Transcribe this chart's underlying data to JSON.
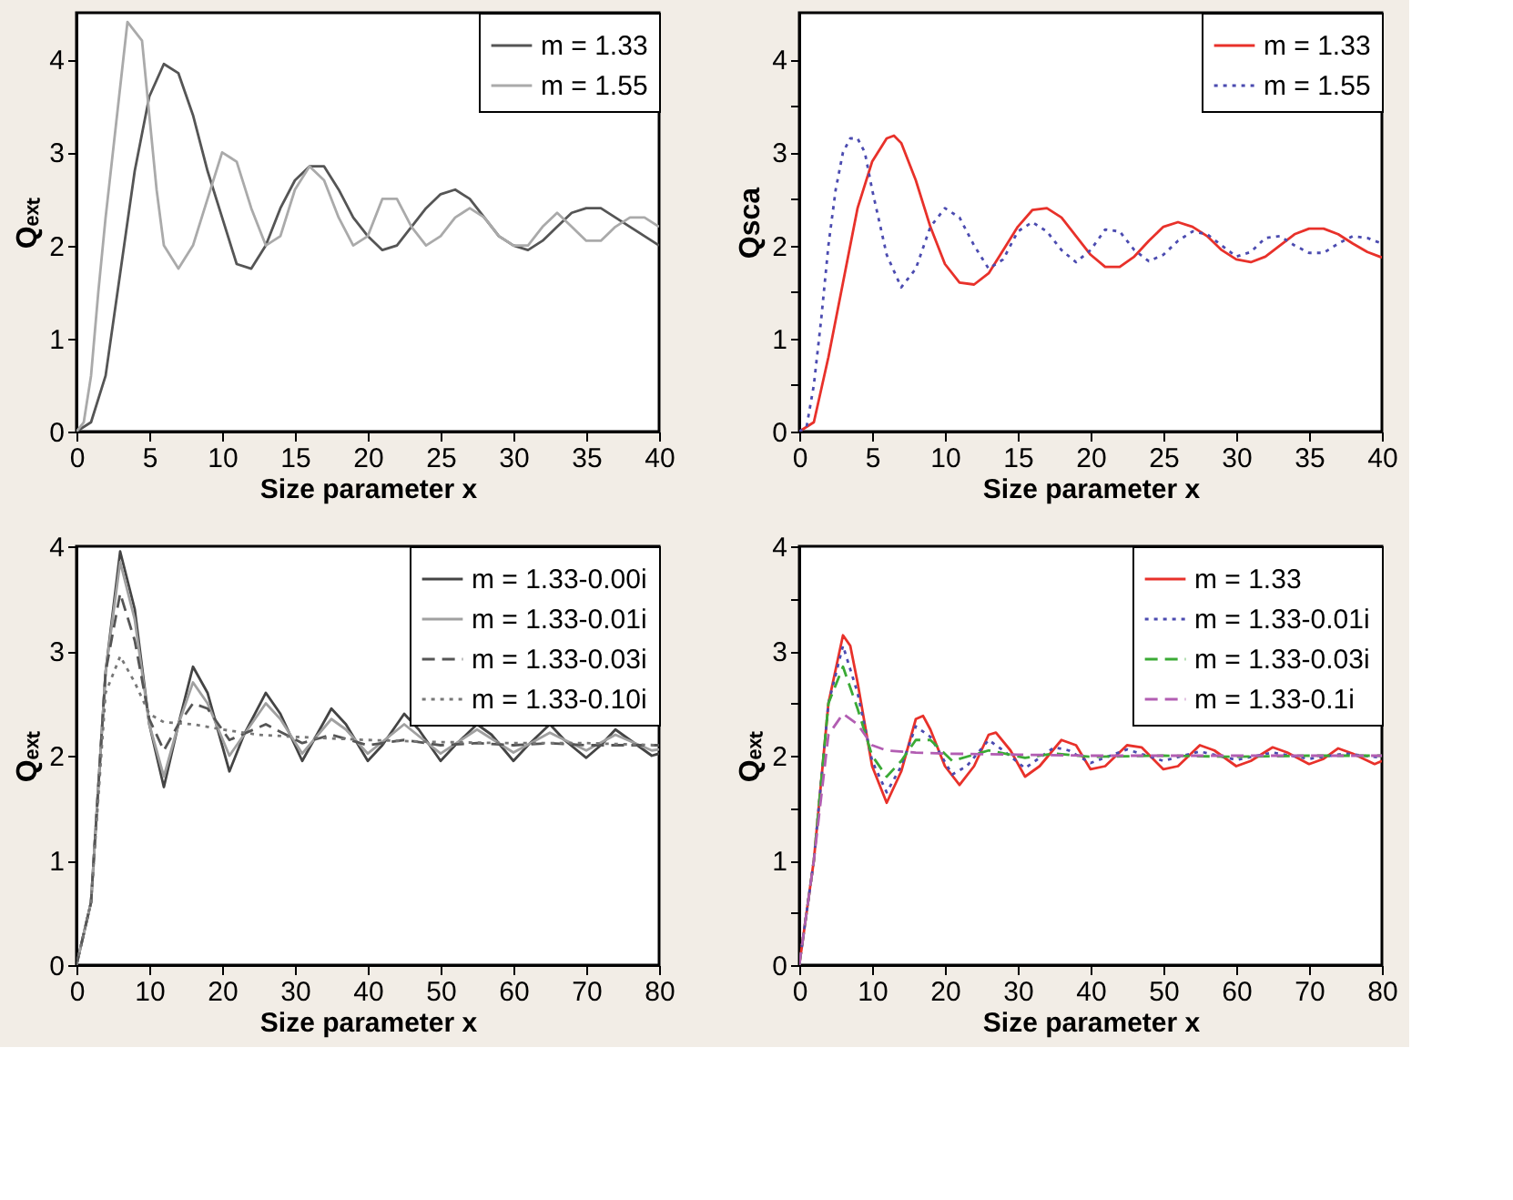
{
  "chart_data": [
    {
      "type": "line",
      "xlabel": "Size parameter x",
      "ylabel": "Qₑₓₜ",
      "xlim": [
        0,
        40
      ],
      "xticks": [
        0,
        5,
        10,
        15,
        20,
        25,
        30,
        35,
        40
      ],
      "ylim": [
        0,
        4.5
      ],
      "yticks": [
        0,
        1,
        2,
        3,
        4
      ],
      "legend": "top right",
      "grid": false,
      "series": [
        {
          "name": "m = 1.33",
          "color": "#555555",
          "line_style": "solid",
          "x": [
            0,
            1,
            2,
            3,
            4,
            5,
            6,
            7,
            8,
            9,
            10,
            11,
            12,
            13,
            14,
            15,
            16,
            17,
            18,
            19,
            20,
            21,
            22,
            23,
            24,
            25,
            26,
            27,
            28,
            29,
            30,
            31,
            32,
            33,
            34,
            35,
            36,
            37,
            38,
            39,
            40
          ],
          "values": [
            0,
            0.1,
            0.6,
            1.7,
            2.8,
            3.6,
            3.95,
            3.85,
            3.4,
            2.8,
            2.3,
            1.8,
            1.75,
            2.0,
            2.4,
            2.7,
            2.85,
            2.85,
            2.6,
            2.3,
            2.1,
            1.95,
            2.0,
            2.2,
            2.4,
            2.55,
            2.6,
            2.5,
            2.3,
            2.1,
            2.0,
            1.95,
            2.05,
            2.2,
            2.35,
            2.4,
            2.4,
            2.3,
            2.2,
            2.1,
            2.0
          ]
        },
        {
          "name": "m = 1.55",
          "color": "#aaaaaa",
          "line_style": "solid",
          "x": [
            0,
            0.5,
            1,
            1.5,
            2,
            2.5,
            3,
            3.5,
            4,
            4.5,
            5,
            5.5,
            6,
            7,
            8,
            9,
            10,
            11,
            12,
            13,
            14,
            15,
            16,
            17,
            18,
            19,
            20,
            21,
            22,
            23,
            24,
            25,
            26,
            27,
            28,
            29,
            30,
            31,
            32,
            33,
            34,
            35,
            36,
            37,
            38,
            39,
            40
          ],
          "values": [
            0,
            0.1,
            0.6,
            1.5,
            2.3,
            3.0,
            3.7,
            4.4,
            4.3,
            4.2,
            3.4,
            2.6,
            2.0,
            1.75,
            2.0,
            2.5,
            3.0,
            2.9,
            2.4,
            2.0,
            2.1,
            2.6,
            2.85,
            2.7,
            2.3,
            2.0,
            2.1,
            2.5,
            2.5,
            2.2,
            2.0,
            2.1,
            2.3,
            2.4,
            2.3,
            2.1,
            2.0,
            2.0,
            2.2,
            2.35,
            2.2,
            2.05,
            2.05,
            2.2,
            2.3,
            2.3,
            2.2
          ]
        }
      ]
    },
    {
      "type": "line",
      "xlabel": "Size parameter x",
      "ylabel": "Qsca",
      "xlim": [
        0,
        40
      ],
      "xticks": [
        0,
        5,
        10,
        15,
        20,
        25,
        30,
        35,
        40
      ],
      "ylim": [
        0,
        4.5
      ],
      "yticks": [
        0,
        {
          "value": 0.5,
          "label": null
        },
        1,
        {
          "value": 1.5,
          "label": null
        },
        2,
        {
          "value": 2.5,
          "label": null
        },
        3,
        {
          "value": 3.5,
          "label": null
        },
        4
      ],
      "legend": "top right",
      "grid": false,
      "series": [
        {
          "name": "m = 1.33",
          "color": "#e8312a",
          "line_style": "solid",
          "x": [
            0,
            1,
            2,
            3,
            4,
            5,
            6,
            6.5,
            7,
            8,
            9,
            10,
            11,
            12,
            13,
            14,
            15,
            16,
            17,
            18,
            19,
            20,
            21,
            22,
            23,
            24,
            25,
            26,
            27,
            28,
            29,
            30,
            31,
            32,
            33,
            34,
            35,
            36,
            37,
            38,
            39,
            40
          ],
          "values": [
            0,
            0.1,
            0.8,
            1.6,
            2.4,
            2.9,
            3.15,
            3.18,
            3.1,
            2.7,
            2.2,
            1.8,
            1.6,
            1.58,
            1.7,
            1.95,
            2.2,
            2.38,
            2.4,
            2.3,
            2.1,
            1.9,
            1.77,
            1.77,
            1.88,
            2.05,
            2.2,
            2.25,
            2.2,
            2.1,
            1.95,
            1.85,
            1.82,
            1.88,
            2.0,
            2.12,
            2.18,
            2.18,
            2.12,
            2.02,
            1.93,
            1.87
          ]
        },
        {
          "name": "m = 1.55",
          "color": "#4b4bb0",
          "line_style": "dotted",
          "x": [
            0,
            0.5,
            1,
            1.5,
            2,
            2.5,
            3,
            3.5,
            4,
            4.5,
            5,
            6,
            7,
            8,
            9,
            10,
            11,
            12,
            13,
            14,
            15,
            16,
            17,
            18,
            19,
            20,
            21,
            22,
            23,
            24,
            25,
            26,
            27,
            28,
            29,
            30,
            31,
            32,
            33,
            34,
            35,
            36,
            37,
            38,
            39,
            40
          ],
          "values": [
            0,
            0.05,
            0.5,
            1.2,
            2.0,
            2.6,
            3.0,
            3.15,
            3.15,
            3.0,
            2.6,
            1.9,
            1.55,
            1.75,
            2.2,
            2.4,
            2.3,
            2.0,
            1.75,
            1.85,
            2.15,
            2.25,
            2.15,
            1.95,
            1.82,
            1.95,
            2.17,
            2.15,
            1.95,
            1.83,
            1.9,
            2.05,
            2.15,
            2.12,
            2.0,
            1.88,
            1.93,
            2.08,
            2.1,
            2.0,
            1.92,
            1.92,
            2.02,
            2.1,
            2.08,
            2.02
          ]
        }
      ]
    },
    {
      "type": "line",
      "xlabel": "Size parameter x",
      "ylabel": "Qₑₓₜ",
      "xlim": [
        0,
        80
      ],
      "xticks": [
        0,
        10,
        20,
        30,
        40,
        50,
        60,
        70,
        80
      ],
      "ylim": [
        0,
        4
      ],
      "yticks": [
        0,
        1,
        2,
        3,
        4
      ],
      "legend": "top right",
      "grid": false,
      "series": [
        {
          "name": "m = 1.33-0.00i",
          "color": "#444444",
          "line_style": "solid",
          "x": [
            0,
            2,
            4,
            6,
            8,
            10,
            12,
            14,
            16,
            18,
            20,
            21,
            23,
            26,
            28,
            31,
            33,
            35,
            37,
            40,
            42,
            45,
            47,
            50,
            52,
            55,
            57,
            60,
            62,
            65,
            67,
            70,
            72,
            74,
            76,
            79,
            80
          ],
          "values": [
            0,
            0.6,
            2.8,
            3.95,
            3.4,
            2.3,
            1.7,
            2.3,
            2.85,
            2.6,
            2.1,
            1.85,
            2.2,
            2.6,
            2.4,
            1.95,
            2.2,
            2.45,
            2.3,
            1.95,
            2.1,
            2.4,
            2.25,
            1.95,
            2.1,
            2.3,
            2.2,
            1.95,
            2.1,
            2.3,
            2.15,
            1.98,
            2.1,
            2.25,
            2.15,
            2.0,
            2.02
          ]
        },
        {
          "name": "m = 1.33-0.01i",
          "color": "#a0a0a0",
          "line_style": "solid",
          "x": [
            0,
            2,
            4,
            6,
            8,
            10,
            12,
            14,
            16,
            18,
            21,
            23,
            26,
            28,
            31,
            35,
            37,
            40,
            45,
            50,
            55,
            60,
            65,
            70,
            74,
            79,
            80
          ],
          "values": [
            0,
            0.6,
            2.8,
            3.85,
            3.3,
            2.3,
            1.8,
            2.3,
            2.7,
            2.5,
            2.0,
            2.2,
            2.5,
            2.35,
            2.02,
            2.35,
            2.25,
            2.02,
            2.3,
            2.02,
            2.25,
            2.03,
            2.22,
            2.05,
            2.2,
            2.05,
            2.06
          ]
        },
        {
          "name": "m = 1.33-0.03i",
          "color": "#555555",
          "line_style": "dashed",
          "x": [
            0,
            2,
            4,
            6,
            8,
            10,
            12,
            14,
            16,
            18,
            21,
            26,
            31,
            35,
            40,
            45,
            50,
            55,
            60,
            65,
            70,
            80
          ],
          "values": [
            0,
            0.6,
            2.8,
            3.55,
            3.1,
            2.35,
            2.05,
            2.3,
            2.5,
            2.45,
            2.15,
            2.3,
            2.12,
            2.2,
            2.1,
            2.15,
            2.1,
            2.12,
            2.1,
            2.12,
            2.1,
            2.1
          ]
        },
        {
          "name": "m = 1.33-0.10i",
          "color": "#777777",
          "line_style": "dotted",
          "x": [
            0,
            2,
            4,
            6,
            8,
            10,
            12,
            16,
            20,
            25,
            30,
            40,
            50,
            60,
            70,
            80
          ],
          "values": [
            0,
            0.6,
            2.6,
            2.95,
            2.7,
            2.4,
            2.32,
            2.3,
            2.25,
            2.2,
            2.18,
            2.15,
            2.13,
            2.12,
            2.12,
            2.1
          ]
        }
      ]
    },
    {
      "type": "line",
      "xlabel": "Size parameter x",
      "ylabel": "Qₑₓₜ",
      "xlim": [
        0,
        80
      ],
      "xticks": [
        0,
        10,
        20,
        30,
        40,
        50,
        60,
        70,
        80
      ],
      "ylim": [
        0,
        4
      ],
      "yticks": [
        0,
        {
          "value": 0.5,
          "label": null
        },
        1,
        {
          "value": 1.5,
          "label": null
        },
        2,
        {
          "value": 2.5,
          "label": null
        },
        3,
        {
          "value": 3.5,
          "label": null
        },
        4
      ],
      "legend": "top right",
      "grid": false,
      "series": [
        {
          "name": "m = 1.33",
          "color": "#e8312a",
          "line_style": "solid",
          "x": [
            0,
            2,
            4,
            6,
            7,
            8,
            10,
            12,
            14,
            16,
            17,
            18,
            20,
            22,
            24,
            26,
            27,
            29,
            31,
            33,
            36,
            38,
            40,
            42,
            45,
            47,
            50,
            52,
            55,
            57,
            60,
            62,
            65,
            67,
            70,
            72,
            74,
            76,
            79,
            80
          ],
          "values": [
            0,
            1.0,
            2.5,
            3.15,
            3.05,
            2.7,
            1.9,
            1.55,
            1.85,
            2.35,
            2.38,
            2.25,
            1.9,
            1.72,
            1.9,
            2.2,
            2.22,
            2.05,
            1.8,
            1.9,
            2.15,
            2.1,
            1.87,
            1.9,
            2.1,
            2.08,
            1.87,
            1.9,
            2.1,
            2.05,
            1.9,
            1.95,
            2.08,
            2.03,
            1.92,
            1.97,
            2.07,
            2.02,
            1.92,
            1.95
          ]
        },
        {
          "name": "m = 1.33-0.01i",
          "color": "#4b4bb0",
          "line_style": "dotted",
          "x": [
            0,
            2,
            4,
            6,
            8,
            10,
            12,
            14,
            16,
            18,
            21,
            23,
            26,
            28,
            31,
            35,
            37,
            40,
            45,
            50,
            55,
            60,
            65,
            70,
            75,
            80
          ],
          "values": [
            0,
            1.0,
            2.5,
            3.05,
            2.6,
            1.95,
            1.65,
            1.9,
            2.28,
            2.18,
            1.82,
            1.9,
            2.15,
            2.05,
            1.88,
            2.08,
            2.05,
            1.93,
            2.06,
            1.95,
            2.04,
            1.96,
            2.03,
            1.97,
            2.02,
            1.98
          ]
        },
        {
          "name": "m = 1.33-0.03i",
          "color": "#3aaa35",
          "line_style": "dashed",
          "x": [
            0,
            2,
            4,
            6,
            8,
            10,
            12,
            14,
            16,
            18,
            21,
            26,
            31,
            35,
            40,
            50,
            60,
            70,
            80
          ],
          "values": [
            0,
            1.0,
            2.5,
            2.85,
            2.45,
            2.0,
            1.8,
            1.95,
            2.15,
            2.15,
            1.95,
            2.05,
            1.98,
            2.02,
            1.99,
            2.0,
            1.99,
            2.0,
            2.0
          ]
        },
        {
          "name": "m = 1.33-0.1i",
          "color": "#b25db2",
          "line_style": "dashed",
          "x": [
            0,
            2,
            4,
            6,
            8,
            10,
            12,
            16,
            20,
            30,
            40,
            60,
            80
          ],
          "values": [
            0,
            1.0,
            2.2,
            2.4,
            2.3,
            2.1,
            2.05,
            2.03,
            2.02,
            2.01,
            2.0,
            2.0,
            2.0
          ]
        }
      ]
    }
  ]
}
